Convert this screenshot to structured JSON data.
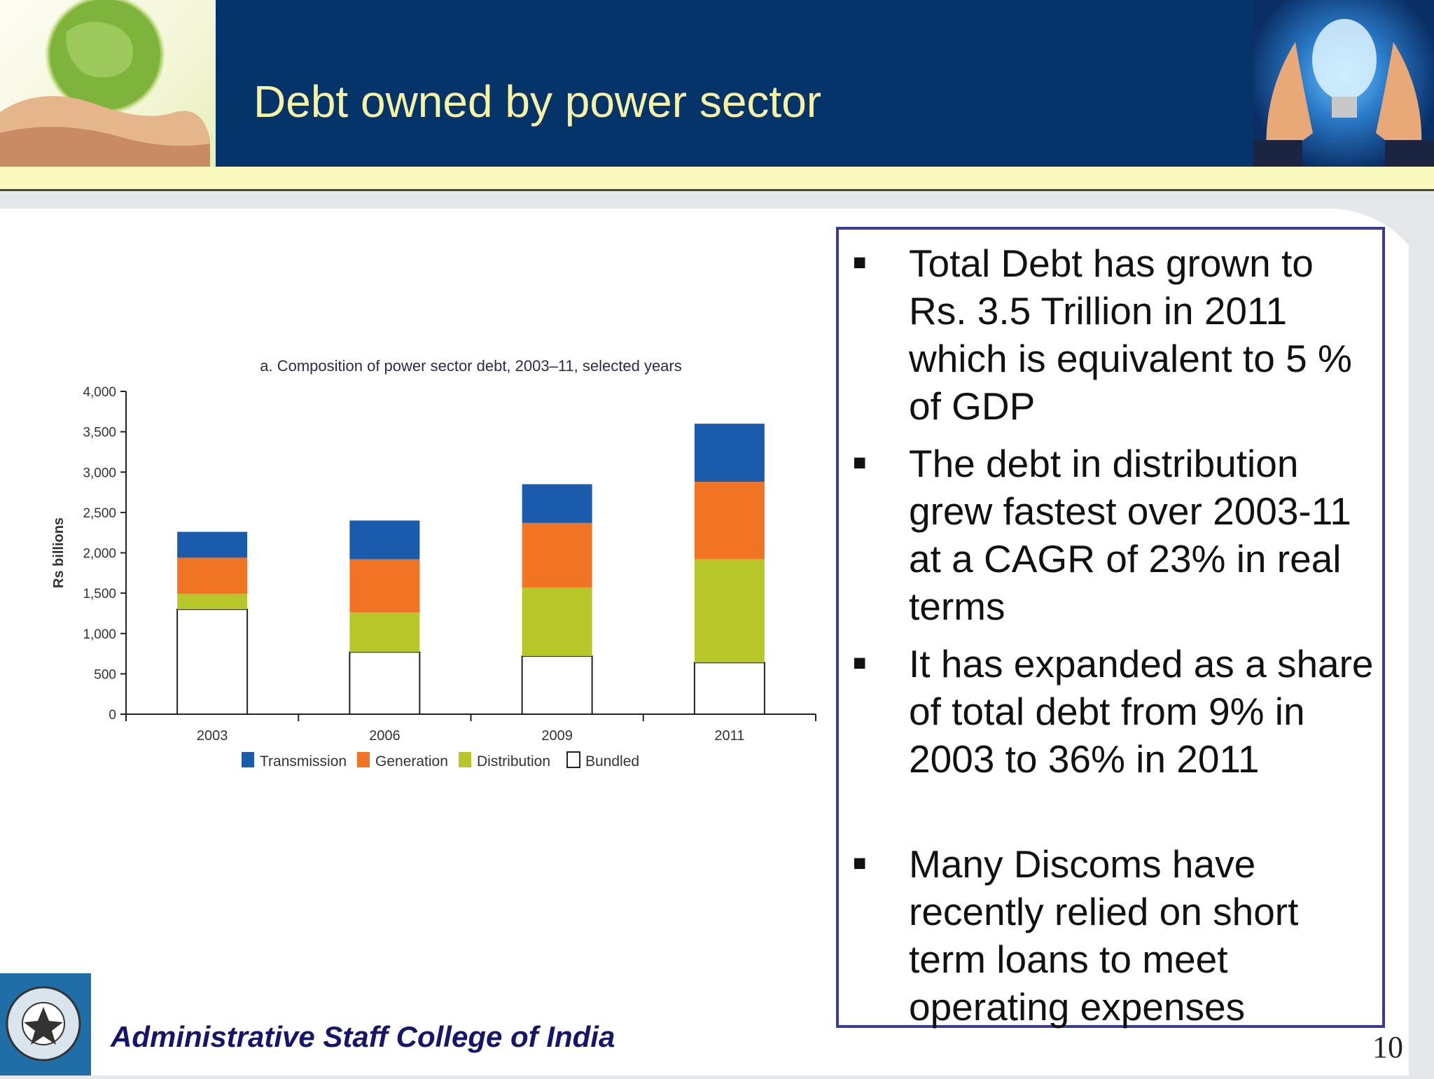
{
  "slide": {
    "title": "Debt owned by power sector",
    "footer": "Administrative Staff College of India",
    "page_number": "10"
  },
  "bullets": [
    {
      "text": "Total Debt has grown to Rs. 3.5 Trillion in 2011 which is equivalent to 5 % of GDP"
    },
    {
      "text": "The debt in distribution grew fastest over 2003-11 at a CAGR of 23% in real terms"
    },
    {
      "text": "It has expanded as a share of total debt from 9% in 2003 to 36% in 2011"
    },
    {
      "text": "Many Discoms have recently relied on short term loans to meet operating expenses"
    }
  ],
  "bullet_symbol": "■",
  "chart_data": {
    "type": "bar",
    "stacked": true,
    "title": "a. Composition of power sector debt, 2003–11, selected years",
    "xlabel": "",
    "ylabel": "Rs billions",
    "categories": [
      "2003",
      "2006",
      "2009",
      "2011"
    ],
    "ylim": [
      0,
      4000
    ],
    "yticks": [
      0,
      500,
      1000,
      1500,
      2000,
      2500,
      3000,
      3500,
      4000
    ],
    "ytick_labels": [
      "0",
      "500",
      "1,000",
      "1,500",
      "2,000",
      "2,500",
      "3,000",
      "3,500",
      "4,000"
    ],
    "series": [
      {
        "name": "Bundled",
        "color": "#ffffff",
        "values": [
          1300,
          770,
          720,
          640
        ]
      },
      {
        "name": "Distribution",
        "color": "#b7c72a",
        "values": [
          190,
          490,
          850,
          1280
        ]
      },
      {
        "name": "Generation",
        "color": "#f07423",
        "values": [
          450,
          660,
          800,
          960
        ]
      },
      {
        "name": "Transmission",
        "color": "#1a5bab",
        "values": [
          320,
          480,
          480,
          720
        ]
      }
    ],
    "legend_order": [
      "Transmission",
      "Generation",
      "Distribution",
      "Bundled"
    ],
    "legend_position": "bottom",
    "grid": false
  }
}
